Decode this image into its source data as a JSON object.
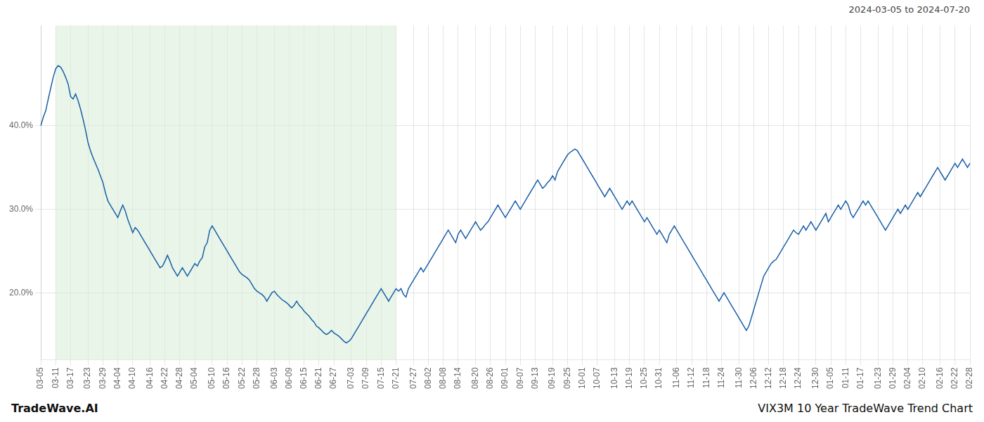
{
  "chart_data": {
    "type": "line",
    "title": "VIX3M 10 Year TradeWave Trend Chart",
    "subtitle": "2024-03-05 to 2024-07-20",
    "annotations": [
      "TradeWave.AI"
    ],
    "color": "#1a5fa8",
    "grid": true,
    "ylim": [
      12,
      52
    ],
    "yticks": [
      {
        "value": 20.0,
        "label": "20.0%"
      },
      {
        "value": 30.0,
        "label": "30.0%"
      },
      {
        "value": 40.0,
        "label": "40.0%"
      }
    ],
    "shaded_span": {
      "from": "03-11",
      "to": "07-21",
      "color": "#d6edd6"
    },
    "categories": [
      "03-05",
      null,
      null,
      null,
      null,
      null,
      "03-11",
      null,
      null,
      null,
      null,
      null,
      "03-17",
      null,
      null,
      null,
      null,
      null,
      null,
      "03-23",
      null,
      null,
      null,
      null,
      null,
      "03-29",
      null,
      null,
      null,
      null,
      null,
      "04-04",
      null,
      null,
      null,
      null,
      null,
      "04-10",
      null,
      null,
      null,
      null,
      null,
      null,
      "04-16",
      null,
      null,
      null,
      null,
      null,
      "04-22",
      null,
      null,
      null,
      null,
      null,
      "04-28",
      null,
      null,
      null,
      null,
      null,
      "05-04",
      null,
      null,
      null,
      null,
      null,
      null,
      "05-10",
      null,
      null,
      null,
      null,
      null,
      "05-16",
      null,
      null,
      null,
      null,
      null,
      "05-22",
      null,
      null,
      null,
      null,
      null,
      "05-28",
      null,
      null,
      null,
      null,
      null,
      null,
      "06-03",
      null,
      null,
      null,
      null,
      null,
      "06-09",
      null,
      null,
      null,
      null,
      null,
      "06-15",
      null,
      null,
      null,
      null,
      null,
      "06-21",
      null,
      null,
      null,
      null,
      null,
      "06-27",
      null,
      null,
      null,
      null,
      null,
      null,
      "07-03",
      null,
      null,
      null,
      null,
      null,
      "07-09",
      null,
      null,
      null,
      null,
      null,
      "07-15",
      null,
      null,
      null,
      null,
      null,
      "07-21",
      null,
      null,
      null,
      null,
      null,
      null,
      "07-27",
      null,
      null,
      null,
      null,
      null,
      "08-02",
      null,
      null,
      null,
      null,
      null,
      "08-08",
      null,
      null,
      null,
      null,
      null,
      "08-14",
      null,
      null,
      null,
      null,
      null,
      null,
      "08-20",
      null,
      null,
      null,
      null,
      null,
      "08-26",
      null,
      null,
      null,
      null,
      null,
      "09-01",
      null,
      null,
      null,
      null,
      null,
      "09-07",
      null,
      null,
      null,
      null,
      null,
      "09-13",
      null,
      null,
      null,
      null,
      null,
      null,
      "09-19",
      null,
      null,
      null,
      null,
      null,
      "09-25",
      null,
      null,
      null,
      null,
      null,
      "10-01",
      null,
      null,
      null,
      null,
      null,
      "10-07",
      null,
      null,
      null,
      null,
      null,
      null,
      "10-13",
      null,
      null,
      null,
      null,
      null,
      "10-19",
      null,
      null,
      null,
      null,
      null,
      "10-25",
      null,
      null,
      null,
      null,
      null,
      "10-31",
      null,
      null,
      null,
      null,
      null,
      null,
      "11-06",
      null,
      null,
      null,
      null,
      null,
      "11-12",
      null,
      null,
      null,
      null,
      null,
      "11-18",
      null,
      null,
      null,
      null,
      null,
      "11-24",
      null,
      null,
      null,
      null,
      null,
      null,
      "11-30",
      null,
      null,
      null,
      null,
      null,
      "12-06",
      null,
      null,
      null,
      null,
      null,
      "12-12",
      null,
      null,
      null,
      null,
      null,
      "12-18",
      null,
      null,
      null,
      null,
      null,
      "12-24",
      null,
      null,
      null,
      null,
      null,
      null,
      "12-30",
      null,
      null,
      null,
      null,
      null,
      "01-05",
      null,
      null,
      null,
      null,
      null,
      "01-11",
      null,
      null,
      null,
      null,
      null,
      "01-17",
      null,
      null,
      null,
      null,
      null,
      null,
      "01-23",
      null,
      null,
      null,
      null,
      null,
      "01-29",
      null,
      null,
      null,
      null,
      null,
      "02-04",
      null,
      null,
      null,
      null,
      null,
      "02-10",
      null,
      null,
      null,
      null,
      null,
      null,
      "02-16",
      null,
      null,
      null,
      null,
      null,
      "02-22",
      null,
      null,
      null,
      null,
      null,
      "02-28"
    ],
    "values": [
      40.0,
      41.0,
      41.8,
      43.2,
      44.5,
      45.8,
      46.8,
      47.2,
      47.0,
      46.5,
      45.8,
      45.0,
      43.5,
      43.2,
      43.8,
      43.0,
      42.0,
      40.8,
      39.5,
      38.0,
      37.0,
      36.2,
      35.5,
      34.8,
      34.0,
      33.2,
      32.0,
      31.0,
      30.5,
      30.0,
      29.5,
      29.0,
      29.8,
      30.5,
      29.8,
      28.8,
      28.0,
      27.2,
      27.8,
      27.5,
      27.0,
      26.5,
      26.0,
      25.5,
      25.0,
      24.5,
      24.0,
      23.5,
      23.0,
      23.2,
      23.8,
      24.5,
      23.8,
      23.0,
      22.5,
      22.0,
      22.5,
      23.0,
      22.5,
      22.0,
      22.5,
      23.0,
      23.5,
      23.2,
      23.8,
      24.2,
      25.5,
      26.0,
      27.5,
      28.0,
      27.5,
      27.0,
      26.5,
      26.0,
      25.5,
      25.0,
      24.5,
      24.0,
      23.5,
      23.0,
      22.5,
      22.2,
      22.0,
      21.8,
      21.5,
      21.0,
      20.5,
      20.2,
      20.0,
      19.8,
      19.5,
      19.0,
      19.5,
      20.0,
      20.2,
      19.8,
      19.5,
      19.2,
      19.0,
      18.8,
      18.5,
      18.2,
      18.5,
      19.0,
      18.5,
      18.2,
      17.8,
      17.5,
      17.2,
      16.8,
      16.5,
      16.0,
      15.8,
      15.5,
      15.2,
      15.0,
      15.2,
      15.5,
      15.2,
      15.0,
      14.8,
      14.5,
      14.2,
      14.0,
      14.2,
      14.5,
      15.0,
      15.5,
      16.0,
      16.5,
      17.0,
      17.5,
      18.0,
      18.5,
      19.0,
      19.5,
      20.0,
      20.5,
      20.0,
      19.5,
      19.0,
      19.5,
      20.0,
      20.5,
      20.2,
      20.5,
      19.8,
      19.5,
      20.5,
      21.0,
      21.5,
      22.0,
      22.5,
      23.0,
      22.5,
      23.0,
      23.5,
      24.0,
      24.5,
      25.0,
      25.5,
      26.0,
      26.5,
      27.0,
      27.5,
      27.0,
      26.5,
      26.0,
      27.0,
      27.5,
      27.0,
      26.5,
      27.0,
      27.5,
      28.0,
      28.5,
      28.0,
      27.5,
      27.8,
      28.2,
      28.5,
      29.0,
      29.5,
      30.0,
      30.5,
      30.0,
      29.5,
      29.0,
      29.5,
      30.0,
      30.5,
      31.0,
      30.5,
      30.0,
      30.5,
      31.0,
      31.5,
      32.0,
      32.5,
      33.0,
      33.5,
      33.0,
      32.5,
      32.8,
      33.2,
      33.5,
      34.0,
      33.5,
      34.5,
      35.0,
      35.5,
      36.0,
      36.5,
      36.8,
      37.0,
      37.2,
      37.0,
      36.5,
      36.0,
      35.5,
      35.0,
      34.5,
      34.0,
      33.5,
      33.0,
      32.5,
      32.0,
      31.5,
      32.0,
      32.5,
      32.0,
      31.5,
      31.0,
      30.5,
      30.0,
      30.5,
      31.0,
      30.5,
      31.0,
      30.5,
      30.0,
      29.5,
      29.0,
      28.5,
      29.0,
      28.5,
      28.0,
      27.5,
      27.0,
      27.5,
      27.0,
      26.5,
      26.0,
      27.0,
      27.5,
      28.0,
      27.5,
      27.0,
      26.5,
      26.0,
      25.5,
      25.0,
      24.5,
      24.0,
      23.5,
      23.0,
      22.5,
      22.0,
      21.5,
      21.0,
      20.5,
      20.0,
      19.5,
      19.0,
      19.5,
      20.0,
      19.5,
      19.0,
      18.5,
      18.0,
      17.5,
      17.0,
      16.5,
      16.0,
      15.5,
      16.0,
      17.0,
      18.0,
      19.0,
      20.0,
      21.0,
      22.0,
      22.5,
      23.0,
      23.5,
      23.8,
      24.0,
      24.5,
      25.0,
      25.5,
      26.0,
      26.5,
      27.0,
      27.5,
      27.2,
      27.0,
      27.5,
      28.0,
      27.5,
      28.0,
      28.5,
      28.0,
      27.5,
      28.0,
      28.5,
      29.0,
      29.5,
      28.5,
      29.0,
      29.5,
      30.0,
      30.5,
      30.0,
      30.5,
      31.0,
      30.5,
      29.5,
      29.0,
      29.5,
      30.0,
      30.5,
      31.0,
      30.5,
      31.0,
      30.5,
      30.0,
      29.5,
      29.0,
      28.5,
      28.0,
      27.5,
      28.0,
      28.5,
      29.0,
      29.5,
      30.0,
      29.5,
      30.0,
      30.5,
      30.0,
      30.5,
      31.0,
      31.5,
      32.0,
      31.5,
      32.0,
      32.5,
      33.0,
      33.5,
      34.0,
      34.5,
      35.0,
      34.5,
      34.0,
      33.5,
      34.0,
      34.5,
      35.0,
      35.5,
      35.0,
      35.5,
      36.0,
      35.5,
      35.0,
      35.5
    ]
  }
}
